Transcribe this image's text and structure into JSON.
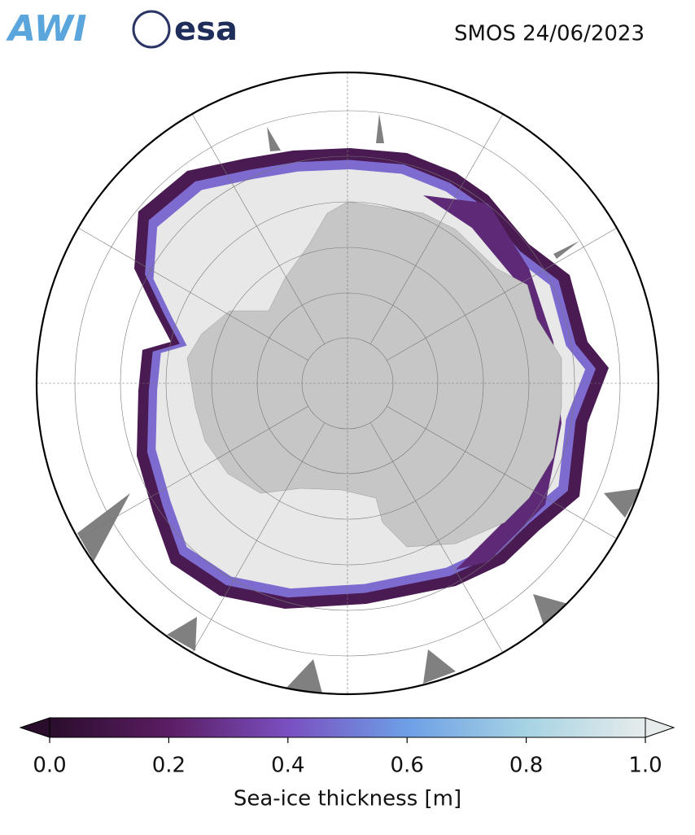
{
  "header": {
    "logos": [
      "AWI",
      "esa"
    ],
    "title": "SMOS 24/06/2023"
  },
  "colorbar": {
    "label": "Sea-ice thickness [m]",
    "lim": [
      0,
      1
    ],
    "ticks": [
      {
        "value": 0,
        "label": "0.0"
      },
      {
        "value": 0.2,
        "label": "0.2"
      },
      {
        "value": 0.4,
        "label": "0.4"
      },
      {
        "value": 0.6,
        "label": "0.6"
      },
      {
        "value": 0.8,
        "label": "0.8"
      },
      {
        "value": 1,
        "label": "1.0"
      }
    ],
    "colors": [
      "#2a0d2c",
      "#5b1d63",
      "#7a4fc0",
      "#6d9fe6",
      "#a6d3e3",
      "#e6ecec"
    ]
  }
}
